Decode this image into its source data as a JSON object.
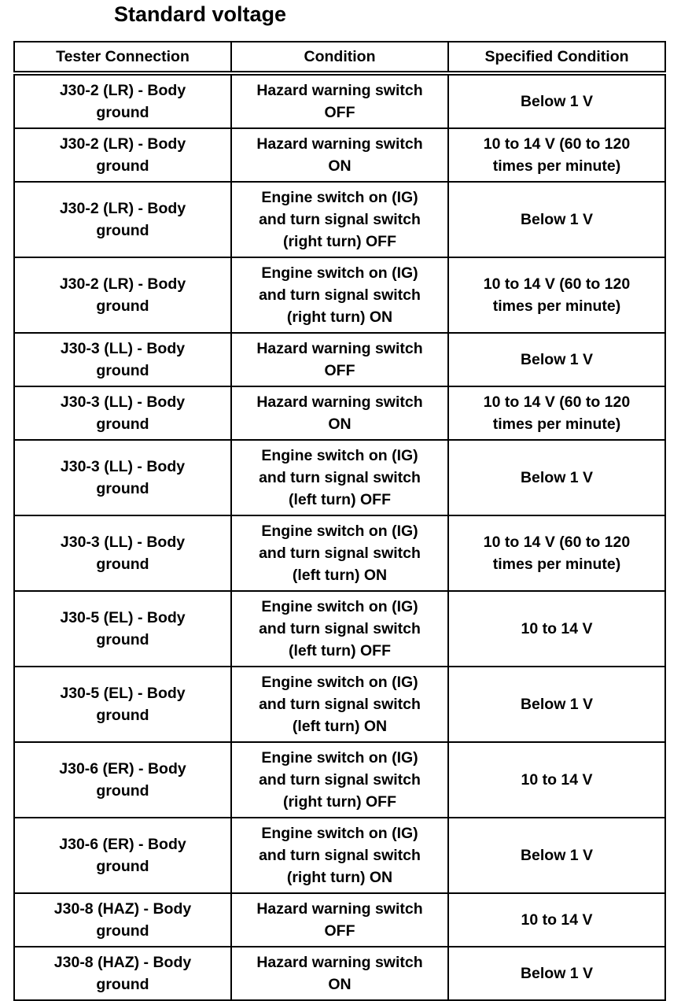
{
  "title": "Standard voltage",
  "headers": [
    "Tester Connection",
    "Condition",
    "Specified Condition"
  ],
  "rows": [
    [
      "J30-2 (LR) - Body\nground",
      "Hazard warning switch\nOFF",
      "Below 1 V"
    ],
    [
      "J30-2 (LR) - Body\nground",
      "Hazard warning switch\nON",
      "10 to 14 V (60 to 120\ntimes per minute)"
    ],
    [
      "J30-2 (LR) - Body\nground",
      "Engine switch on (IG)\nand turn signal switch\n(right turn) OFF",
      "Below 1 V"
    ],
    [
      "J30-2 (LR) - Body\nground",
      "Engine switch on (IG)\nand turn signal switch\n(right turn) ON",
      "10 to 14 V (60 to 120\ntimes per minute)"
    ],
    [
      "J30-3 (LL) - Body\nground",
      "Hazard warning switch\nOFF",
      "Below 1 V"
    ],
    [
      "J30-3 (LL) - Body\nground",
      "Hazard warning switch\nON",
      "10 to 14 V (60 to 120\ntimes per minute)"
    ],
    [
      "J30-3 (LL) - Body\nground",
      "Engine switch on (IG)\nand turn signal switch\n(left turn) OFF",
      "Below 1 V"
    ],
    [
      "J30-3 (LL) - Body\nground",
      "Engine switch on (IG)\nand turn signal switch\n(left turn) ON",
      "10 to 14 V (60 to 120\ntimes per minute)"
    ],
    [
      "J30-5 (EL) - Body\nground",
      "Engine switch on (IG)\nand turn signal switch\n(left turn) OFF",
      "10 to 14 V"
    ],
    [
      "J30-5 (EL) - Body\nground",
      "Engine switch on (IG)\nand turn signal switch\n(left turn) ON",
      "Below 1 V"
    ],
    [
      "J30-6 (ER) - Body\nground",
      "Engine switch on (IG)\nand turn signal switch\n(right turn) OFF",
      "10 to 14 V"
    ],
    [
      "J30-6 (ER) - Body\nground",
      "Engine switch on (IG)\nand turn signal switch\n(right turn) ON",
      "Below 1 V"
    ],
    [
      "J30-8 (HAZ) - Body\nground",
      "Hazard warning switch\nOFF",
      "10 to 14 V"
    ],
    [
      "J30-8 (HAZ) - Body\nground",
      "Hazard warning switch\nON",
      "Below 1 V"
    ]
  ]
}
